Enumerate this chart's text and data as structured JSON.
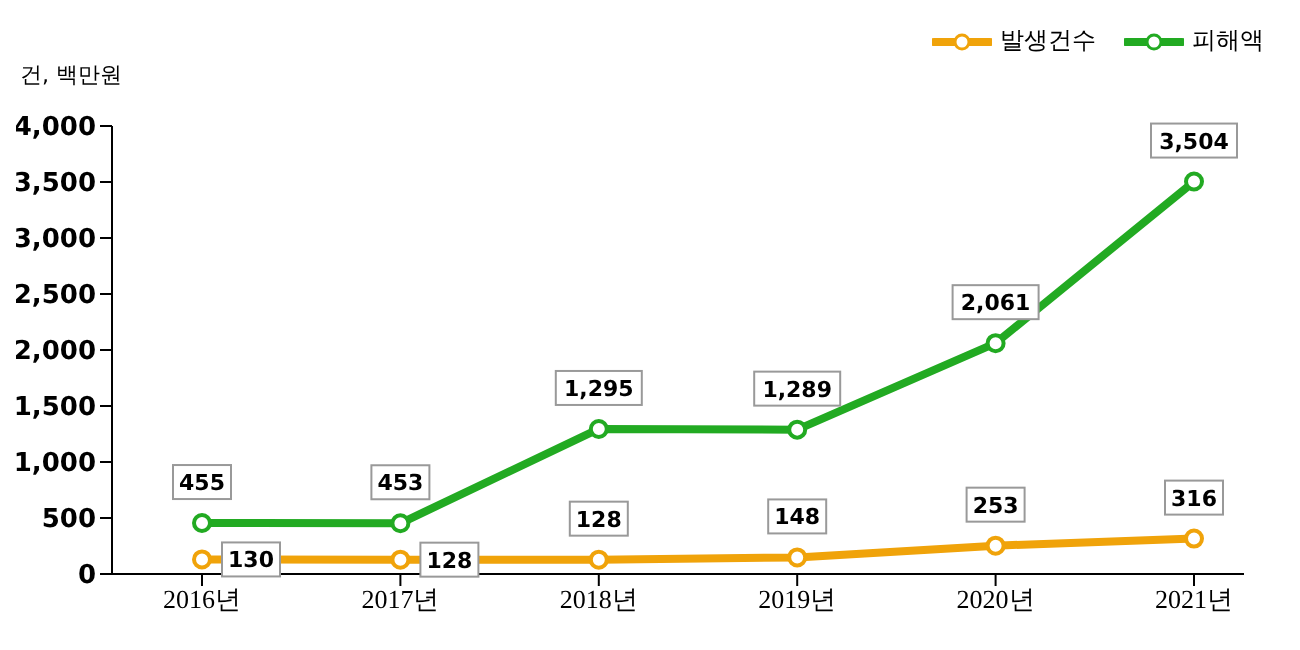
{
  "chart_data": {
    "type": "line",
    "ylabel": "건, 백만원",
    "categories": [
      "2016년",
      "2017년",
      "2018년",
      "2019년",
      "2020년",
      "2021년"
    ],
    "series": [
      {
        "name": "발생건수",
        "color": "#f0a30a",
        "values": [
          130,
          128,
          128,
          148,
          253,
          316
        ],
        "value_labels": [
          "130",
          "128",
          "128",
          "148",
          "253",
          "316"
        ]
      },
      {
        "name": "피해액",
        "color": "#22aa22",
        "values": [
          455,
          453,
          1295,
          1289,
          2061,
          3504
        ],
        "value_labels": [
          "455",
          "453",
          "1,295",
          "1,289",
          "2,061",
          "3,504"
        ]
      }
    ],
    "ylim": [
      0,
      4000
    ],
    "yticks": [
      0,
      {
        "value": 500,
        "label": "500"
      },
      {
        "value": 1000,
        "label": "1,000"
      },
      {
        "value": 1500,
        "label": "1,500"
      },
      {
        "value": 2000,
        "label": "2,000"
      },
      {
        "value": 2500,
        "label": "2,500"
      },
      {
        "value": 3000,
        "label": "3,000"
      },
      {
        "value": 3500,
        "label": "3,500"
      },
      {
        "value": 4000,
        "label": "4,000"
      }
    ],
    "grid": false,
    "legend": "top right",
    "marker": "circle",
    "line_style": "solid"
  }
}
